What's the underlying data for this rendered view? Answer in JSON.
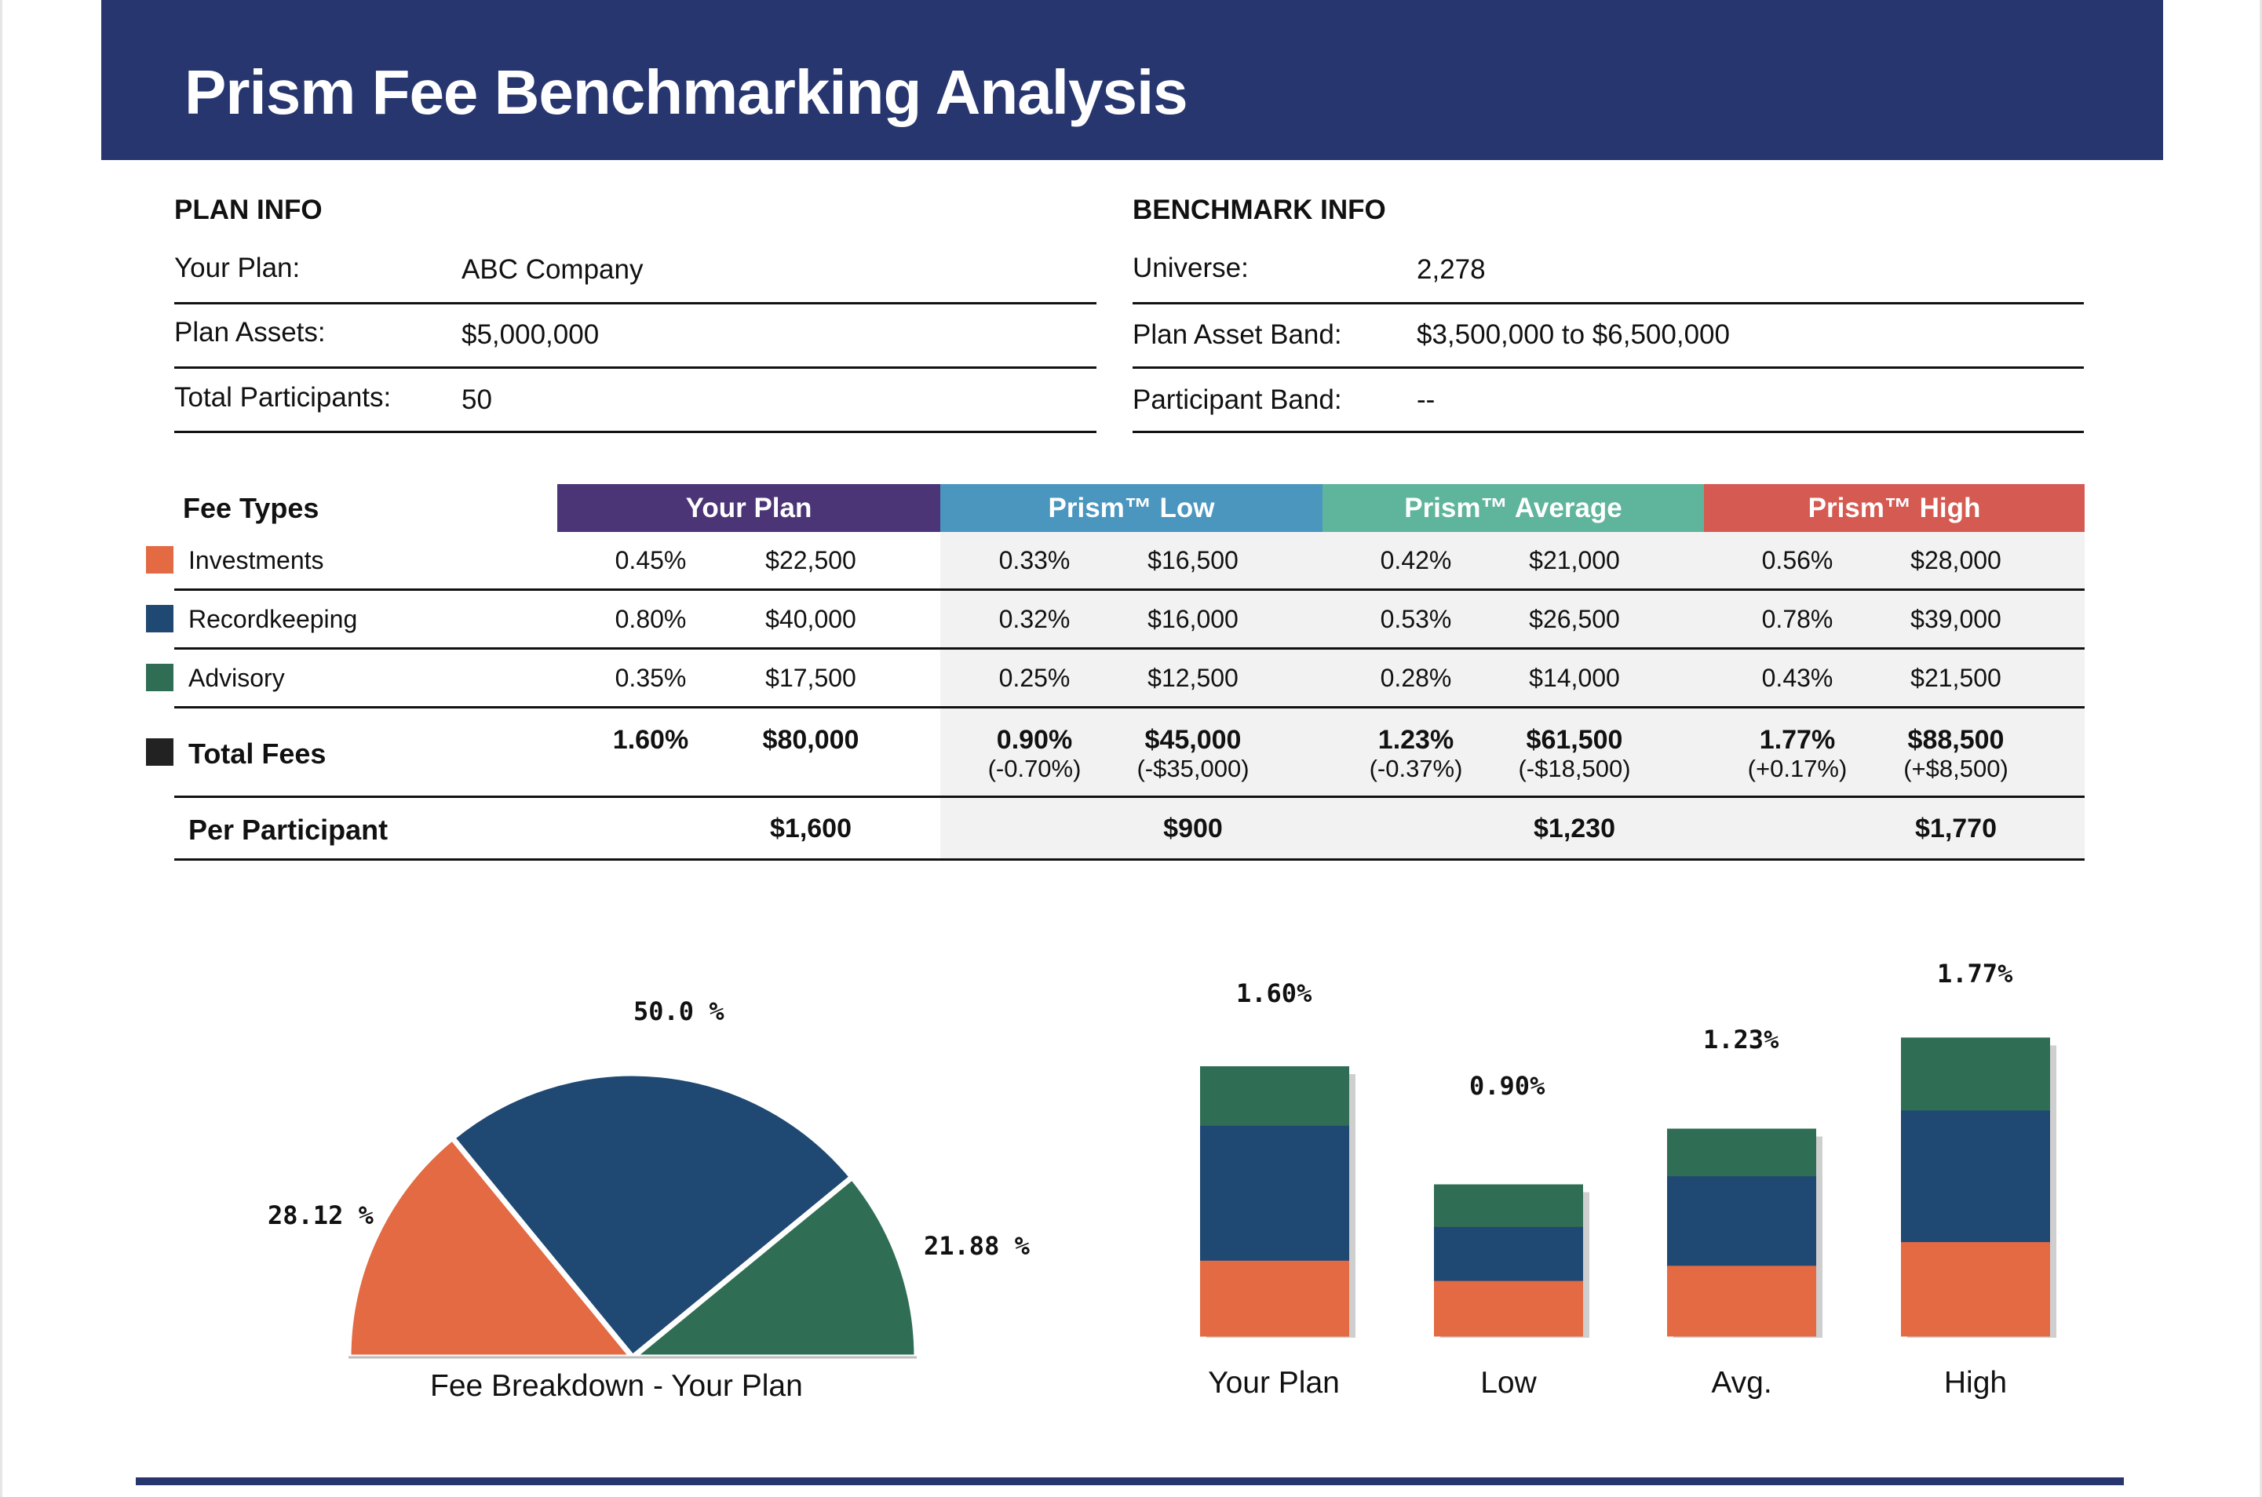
{
  "title": "Prism Fee Benchmarking Analysis",
  "plan_info": {
    "heading": "PLAN INFO",
    "rows": [
      {
        "label": "Your Plan:",
        "value": "ABC Company"
      },
      {
        "label": "Plan Assets:",
        "value": "$5,000,000"
      },
      {
        "label": "Total Participants:",
        "value": "50"
      }
    ]
  },
  "benchmark_info": {
    "heading": "BENCHMARK INFO",
    "rows": [
      {
        "label": "Universe:",
        "value": "2,278"
      },
      {
        "label": "Plan Asset Band:",
        "value": "$3,500,000 to $6,500,000"
      },
      {
        "label": "Participant Band:",
        "value": "--"
      }
    ]
  },
  "fee_table": {
    "heading": "Fee Types",
    "columns": [
      {
        "label": "Your Plan",
        "color": "#4b3577"
      },
      {
        "label": "Prism™ Low",
        "color": "#4a96bf"
      },
      {
        "label": "Prism™ Average",
        "color": "#5fb49c"
      },
      {
        "label": "Prism™ High",
        "color": "#d55a52"
      }
    ],
    "rows": [
      {
        "label": "Investments",
        "color": "#e36a43",
        "cells": [
          [
            "0.45%",
            "$22,500"
          ],
          [
            "0.33%",
            "$16,500"
          ],
          [
            "0.42%",
            "$21,000"
          ],
          [
            "0.56%",
            "$28,000"
          ]
        ]
      },
      {
        "label": "Recordkeeping",
        "color": "#1f4873",
        "cells": [
          [
            "0.80%",
            "$40,000"
          ],
          [
            "0.32%",
            "$16,000"
          ],
          [
            "0.53%",
            "$26,500"
          ],
          [
            "0.78%",
            "$39,000"
          ]
        ]
      },
      {
        "label": "Advisory",
        "color": "#2f6e55",
        "cells": [
          [
            "0.35%",
            "$17,500"
          ],
          [
            "0.25%",
            "$12,500"
          ],
          [
            "0.28%",
            "$14,000"
          ],
          [
            "0.43%",
            "$21,500"
          ]
        ]
      }
    ],
    "total": {
      "label": "Total Fees",
      "color": "#222222",
      "cells": [
        {
          "pct": "1.60%",
          "amt": "$80,000",
          "pct_diff": "",
          "amt_diff": ""
        },
        {
          "pct": "0.90%",
          "amt": "$45,000",
          "pct_diff": "(-0.70%)",
          "amt_diff": "(-$35,000)"
        },
        {
          "pct": "1.23%",
          "amt": "$61,500",
          "pct_diff": "(-0.37%)",
          "amt_diff": "(-$18,500)"
        },
        {
          "pct": "1.77%",
          "amt": "$88,500",
          "pct_diff": "(+0.17%)",
          "amt_diff": "(+$8,500)"
        }
      ]
    },
    "per_participant": {
      "label": "Per Participant",
      "values": [
        "$1,600",
        "$900",
        "$1,230",
        "$1,770"
      ]
    }
  },
  "chart_data": [
    {
      "type": "pie",
      "title": "Fee Breakdown - Your Plan",
      "style": "half-pie",
      "labels": [
        "Investments",
        "Recordkeeping",
        "Advisory"
      ],
      "values": [
        28.12,
        50.0,
        21.88
      ],
      "value_labels": [
        "28.12 %",
        "50.0 %",
        "21.88 %"
      ],
      "colors": [
        "#e36a43",
        "#1f4873",
        "#2f6e55"
      ]
    },
    {
      "type": "bar",
      "stacked": true,
      "categories": [
        "Your Plan",
        "Low",
        "Avg.",
        "High"
      ],
      "series": [
        {
          "name": "Investments",
          "color": "#e36a43",
          "values": [
            0.45,
            0.33,
            0.42,
            0.56
          ]
        },
        {
          "name": "Recordkeeping",
          "color": "#1f4873",
          "values": [
            0.8,
            0.32,
            0.53,
            0.78
          ]
        },
        {
          "name": "Advisory",
          "color": "#2f6e55",
          "values": [
            0.35,
            0.25,
            0.28,
            0.43
          ]
        }
      ],
      "totals": [
        1.6,
        0.9,
        1.23,
        1.77
      ],
      "total_labels": [
        "1.60%",
        "0.90%",
        "1.23%",
        "1.77%"
      ],
      "ylim": [
        0,
        2.0
      ]
    }
  ]
}
